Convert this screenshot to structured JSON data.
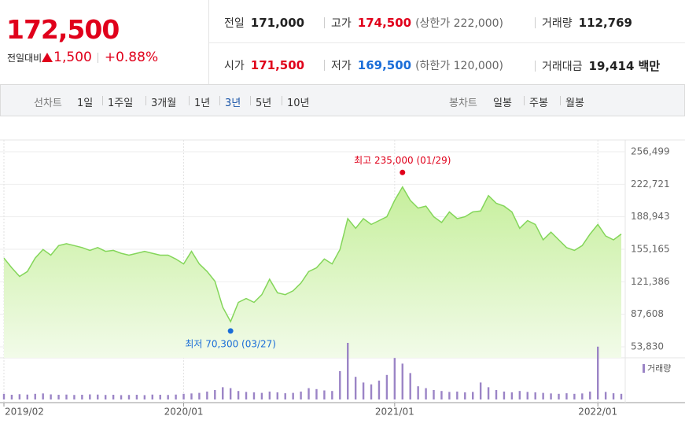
{
  "header": {
    "price": "172,500",
    "change_label": "전일대비",
    "change": "1,500",
    "change_pct": "+0.88%",
    "rows": [
      [
        {
          "label": "전일",
          "value": "171,000"
        },
        {
          "label": "고가",
          "value": "174,500",
          "extra": "(상한가 222,000)"
        },
        {
          "label": "거래량",
          "value": "112,769"
        }
      ],
      [
        {
          "label": "시가",
          "value": "171,500"
        },
        {
          "label": "저가",
          "value": "169,500",
          "extra": "(하한가 120,000)"
        },
        {
          "label": "거래대금",
          "value": "19,414 백만"
        }
      ]
    ]
  },
  "toolbar": {
    "line_label": "선차트",
    "periods": [
      "1일",
      "1주일",
      "3개월",
      "1년",
      "3년",
      "5년",
      "10년"
    ],
    "candle_label": "봉차트",
    "candles": [
      "일봉",
      "주봉",
      "월봉"
    ]
  },
  "chart_data": {
    "type": "line",
    "color": "#84d65a",
    "categories": [
      "2019/02",
      null,
      null,
      null,
      null,
      null,
      null,
      null,
      null,
      null,
      null,
      null,
      null,
      null,
      null,
      null,
      null,
      null,
      null,
      null,
      null,
      null,
      null,
      "2020/01",
      null,
      null,
      null,
      null,
      null,
      null,
      null,
      null,
      null,
      null,
      null,
      null,
      null,
      null,
      null,
      null,
      null,
      null,
      null,
      null,
      null,
      null,
      null,
      null,
      null,
      null,
      "2021/01",
      null,
      null,
      null,
      null,
      null,
      null,
      null,
      null,
      null,
      null,
      null,
      null,
      null,
      null,
      null,
      null,
      null,
      null,
      null,
      null,
      null,
      null,
      null,
      null,
      null,
      "2022/01",
      null,
      null,
      null
    ],
    "values": [
      146000,
      136000,
      127000,
      132000,
      146000,
      155000,
      149000,
      159000,
      161000,
      159000,
      157000,
      154000,
      157000,
      153000,
      154000,
      151000,
      149000,
      151000,
      153000,
      151000,
      149000,
      149000,
      145000,
      140000,
      153000,
      140000,
      132000,
      122000,
      95000,
      80000,
      100000,
      104000,
      100000,
      108000,
      124000,
      110000,
      108000,
      112000,
      120000,
      132000,
      136000,
      145000,
      140000,
      155000,
      187000,
      177000,
      187000,
      181000,
      185000,
      189000,
      206000,
      220000,
      206000,
      198000,
      200000,
      189000,
      183000,
      194000,
      187000,
      189000,
      194000,
      195000,
      211000,
      203000,
      200000,
      194000,
      177000,
      185000,
      181000,
      165000,
      173000,
      165000,
      157000,
      154000,
      159000,
      171000,
      181000,
      169000,
      165000,
      171000
    ],
    "volume": {
      "name": "거래량",
      "color": "#9b84c6",
      "values": [
        300000,
        250000,
        280000,
        260000,
        300000,
        320000,
        270000,
        250000,
        260000,
        240000,
        250000,
        270000,
        260000,
        240000,
        250000,
        230000,
        240000,
        250000,
        230000,
        260000,
        250000,
        240000,
        260000,
        300000,
        320000,
        350000,
        420000,
        500000,
        650000,
        600000,
        450000,
        400000,
        380000,
        350000,
        420000,
        380000,
        330000,
        350000,
        420000,
        600000,
        550000,
        480000,
        450000,
        1500000,
        3000000,
        1200000,
        900000,
        800000,
        1000000,
        1300000,
        2200000,
        1900000,
        1400000,
        700000,
        600000,
        500000,
        450000,
        400000,
        420000,
        380000,
        400000,
        900000,
        650000,
        500000,
        420000,
        380000,
        450000,
        400000,
        380000,
        350000,
        320000,
        300000,
        330000,
        300000,
        320000,
        420000,
        2800000,
        400000,
        330000,
        300000
      ]
    },
    "ylim": [
      53830,
      256499
    ],
    "yticks": [
      {
        "value": 53830,
        "label": "53,830"
      },
      {
        "value": 87608,
        "label": "87,608"
      },
      {
        "value": 121386,
        "label": "121,386"
      },
      {
        "value": 155165,
        "label": "155,165"
      },
      {
        "value": 188943,
        "label": "188,943"
      },
      {
        "value": 222721,
        "label": "222,721"
      },
      {
        "value": 256499,
        "label": "256,499"
      }
    ],
    "grid": true,
    "annotations": [
      {
        "label": "최고 235,000 (01/29)",
        "value": 235000,
        "color": "#e0001b"
      },
      {
        "label": "최저 70,300 (03/27)",
        "value": 70300,
        "color": "#1a6dd8"
      }
    ]
  }
}
